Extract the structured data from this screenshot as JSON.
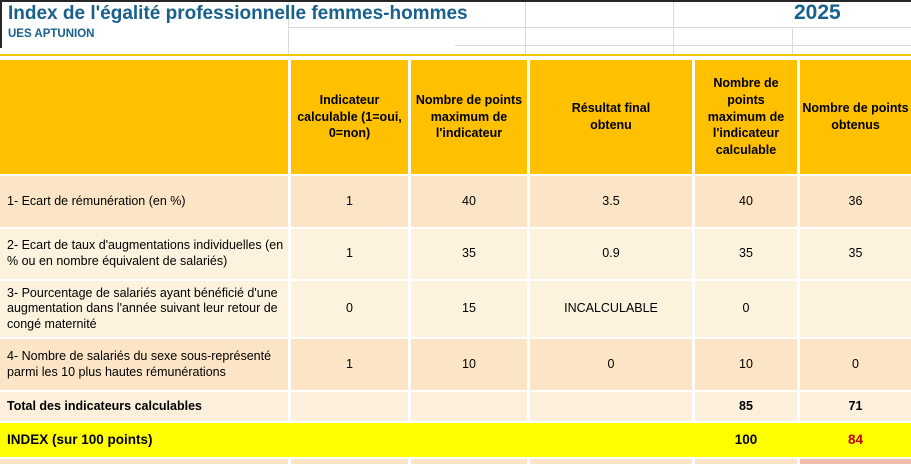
{
  "title": {
    "text": "Index de l'égalité professionnelle femmes-hommes",
    "subtitle": "UES APTUNION",
    "year": "2025"
  },
  "colors": {
    "header_bg": "#ffc000",
    "row_peach": "#fbe5c6",
    "row_cream": "#fdf2de",
    "index_row_bg": "#ffff00",
    "title_text": "#17618c",
    "index_value_red": "#c00000"
  },
  "table": {
    "columns": [
      "",
      "Indicateur calculable (1=oui, 0=non)",
      "Nombre de points maximum de l'indicateur",
      "Résultat final obtenu",
      "Nombre de points maximum de l'indicateur calculable",
      "Nombre de points obtenus"
    ],
    "rows": [
      {
        "label": "1- Ecart de rémunération (en %)",
        "calculable": "1",
        "max_points": "40",
        "result": "3.5",
        "max_points_calculable": "40",
        "points": "36"
      },
      {
        "label": "2- Ecart de taux d'augmentations individuelles (en % ou en nombre équivalent de salariés)",
        "calculable": "1",
        "max_points": "35",
        "result": "0.9",
        "max_points_calculable": "35",
        "points": "35"
      },
      {
        "label": "3- Pourcentage de salariés ayant bénéficié d'une augmentation dans l'année suivant leur retour de congé maternité",
        "calculable": "0",
        "max_points": "15",
        "result": "INCALCULABLE",
        "max_points_calculable": "0",
        "points": ""
      },
      {
        "label": "4- Nombre de salariés du sexe sous-représenté parmi les 10 plus hautes rémunérations",
        "calculable": "1",
        "max_points": "10",
        "result": "0",
        "max_points_calculable": "10",
        "points": "0"
      }
    ],
    "total": {
      "label": "Total des indicateurs calculables",
      "max_points_calculable": "85",
      "points": "71"
    },
    "index": {
      "label": "INDEX (sur 100 points)",
      "max_points_calculable": "100",
      "points": "84"
    }
  }
}
